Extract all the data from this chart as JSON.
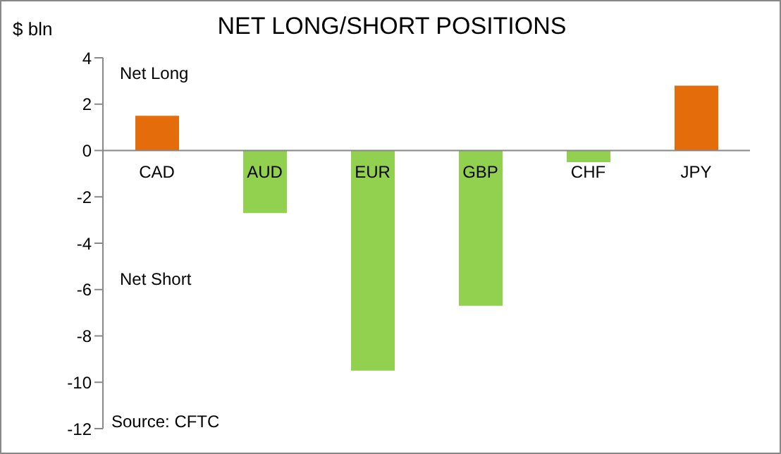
{
  "chart_data": {
    "type": "bar",
    "title": "NET LONG/SHORT POSITIONS",
    "ylabel": "$ bln",
    "categories": [
      "CAD",
      "AUD",
      "EUR",
      "GBP",
      "CHF",
      "JPY"
    ],
    "values": [
      1.5,
      -2.7,
      -9.5,
      -6.7,
      -0.5,
      2.8
    ],
    "colors": [
      "#e46c0a",
      "#92d050",
      "#92d050",
      "#92d050",
      "#92d050",
      "#e46c0a"
    ],
    "ylim": [
      -12,
      4
    ],
    "yticks": [
      -12,
      -10,
      -8,
      -6,
      -4,
      -2,
      0,
      2,
      4
    ],
    "annotations": [
      "Net Long",
      "Net Short",
      "Source: CFTC"
    ]
  }
}
